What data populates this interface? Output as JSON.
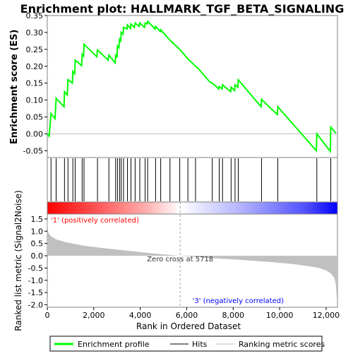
{
  "chart_data": {
    "type": "line",
    "title": "Enrichment plot: HALLMARK_TGF_BETA_SIGNALING",
    "xlabel": "Rank in Ordered Dataset",
    "xlim": [
      0,
      12488
    ],
    "x_ticks": [
      0,
      2000,
      4000,
      6000,
      8000,
      10000,
      12000
    ],
    "x_tick_labels": [
      "0",
      "2,000",
      "4,000",
      "6,000",
      "8,000",
      "10,000",
      "12,000"
    ],
    "es_panel": {
      "ylabel": "Enrichment score (ES)",
      "ylim": [
        -0.07,
        0.35
      ],
      "y_ticks": [
        -0.05,
        0.0,
        0.05,
        0.1,
        0.15,
        0.2,
        0.25,
        0.3,
        0.35
      ],
      "y_tick_labels": [
        "-0.05",
        "0.00",
        "0.05",
        "0.10",
        "0.15",
        "0.20",
        "0.25",
        "0.30",
        "0.35"
      ],
      "series": [
        {
          "name": "Enrichment profile",
          "color": "#00ff00",
          "points": [
            [
              0,
              0.0
            ],
            [
              80,
              -0.007
            ],
            [
              160,
              0.06
            ],
            [
              330,
              0.045
            ],
            [
              380,
              0.105
            ],
            [
              720,
              0.08
            ],
            [
              740,
              0.125
            ],
            [
              860,
              0.115
            ],
            [
              890,
              0.16
            ],
            [
              1080,
              0.15
            ],
            [
              1100,
              0.185
            ],
            [
              1180,
              0.178
            ],
            [
              1200,
              0.218
            ],
            [
              1480,
              0.202
            ],
            [
              1500,
              0.235
            ],
            [
              1560,
              0.23
            ],
            [
              1580,
              0.265
            ],
            [
              2130,
              0.228
            ],
            [
              2160,
              0.248
            ],
            [
              2620,
              0.218
            ],
            [
              2650,
              0.233
            ],
            [
              2920,
              0.21
            ],
            [
              2940,
              0.235
            ],
            [
              3000,
              0.225
            ],
            [
              3020,
              0.26
            ],
            [
              3080,
              0.255
            ],
            [
              3110,
              0.28
            ],
            [
              3160,
              0.275
            ],
            [
              3180,
              0.3
            ],
            [
              3260,
              0.295
            ],
            [
              3280,
              0.315
            ],
            [
              3430,
              0.31
            ],
            [
              3450,
              0.322
            ],
            [
              3580,
              0.312
            ],
            [
              3600,
              0.325
            ],
            [
              3750,
              0.315
            ],
            [
              3780,
              0.328
            ],
            [
              3950,
              0.318
            ],
            [
              3980,
              0.328
            ],
            [
              4180,
              0.315
            ],
            [
              4210,
              0.328
            ],
            [
              4300,
              0.325
            ],
            [
              4320,
              0.333
            ],
            [
              4640,
              0.31
            ],
            [
              4660,
              0.318
            ],
            [
              4860,
              0.303
            ],
            [
              4880,
              0.308
            ],
            [
              5280,
              0.277
            ],
            [
              5700,
              0.25
            ],
            [
              6050,
              0.222
            ],
            [
              6380,
              0.2
            ],
            [
              6500,
              0.193
            ],
            [
              7000,
              0.153
            ],
            [
              7100,
              0.15
            ],
            [
              7380,
              0.133
            ],
            [
              7400,
              0.14
            ],
            [
              7520,
              0.133
            ],
            [
              7540,
              0.145
            ],
            [
              7890,
              0.125
            ],
            [
              7910,
              0.138
            ],
            [
              8060,
              0.128
            ],
            [
              8080,
              0.145
            ],
            [
              8200,
              0.138
            ],
            [
              8220,
              0.16
            ],
            [
              9200,
              0.08
            ],
            [
              9220,
              0.102
            ],
            [
              9900,
              0.057
            ],
            [
              9920,
              0.08
            ],
            [
              11580,
              -0.05
            ],
            [
              11600,
              0.0
            ],
            [
              12180,
              -0.052
            ],
            [
              12200,
              0.02
            ],
            [
              12420,
              0.002
            ]
          ]
        }
      ],
      "zero_line": 0.0
    },
    "hits_panel": {
      "series_name": "Hits",
      "color": "#000000",
      "ranks": [
        160,
        380,
        740,
        890,
        1100,
        1200,
        1500,
        1580,
        2160,
        2650,
        2940,
        3020,
        3110,
        3180,
        3280,
        3450,
        3600,
        3780,
        3980,
        4210,
        4320,
        4660,
        4880,
        5280,
        5700,
        6050,
        6380,
        7100,
        7400,
        7540,
        7910,
        8080,
        8220,
        9220,
        9920,
        11600,
        12200
      ]
    },
    "colorbar": {
      "from_color": "#ff0000",
      "mid_color": "#ffffff",
      "to_color": "#0000ff",
      "pos_label": "'1' (positively correlated)",
      "neg_label": "'3' (negatively correlated)",
      "pos_color": "#ff0000",
      "neg_color": "#0000ff"
    },
    "metric_panel": {
      "ylabel": "Ranked list metric (Signal2Noise)",
      "ylim": [
        -2.1,
        1.7
      ],
      "y_ticks": [
        -2.0,
        -1.5,
        -1.0,
        -0.5,
        0.0,
        0.5,
        1.0,
        1.5
      ],
      "y_tick_labels": [
        "-2.0",
        "-1.5",
        "-1.0",
        "-0.5",
        "0.0",
        "0.5",
        "1.0",
        "1.5"
      ],
      "series_name": "Ranking metric scores",
      "fill_color": "#c0c0c0",
      "curve": [
        [
          0,
          1.5
        ],
        [
          40,
          0.95
        ],
        [
          150,
          0.8
        ],
        [
          400,
          0.66
        ],
        [
          800,
          0.55
        ],
        [
          1500,
          0.42
        ],
        [
          2500,
          0.3
        ],
        [
          3500,
          0.2
        ],
        [
          4500,
          0.1
        ],
        [
          5300,
          0.03
        ],
        [
          5718,
          0.0
        ],
        [
          6500,
          -0.06
        ],
        [
          7500,
          -0.12
        ],
        [
          8500,
          -0.18
        ],
        [
          9500,
          -0.25
        ],
        [
          10500,
          -0.33
        ],
        [
          11200,
          -0.42
        ],
        [
          11700,
          -0.5
        ],
        [
          12000,
          -0.6
        ],
        [
          12200,
          -0.72
        ],
        [
          12350,
          -0.9
        ],
        [
          12420,
          -1.2
        ],
        [
          12460,
          -1.8
        ],
        [
          12488,
          -1.9
        ]
      ],
      "zero_cross_rank": 5718,
      "zero_cross_label": "Zero cross at 5718"
    },
    "legend": [
      {
        "label": "Enrichment profile",
        "color": "#00ff00",
        "style": "thick-line"
      },
      {
        "label": "Hits",
        "color": "#000000",
        "style": "line"
      },
      {
        "label": "Ranking metric scores",
        "color": "#c0c0c0",
        "style": "line"
      }
    ]
  }
}
